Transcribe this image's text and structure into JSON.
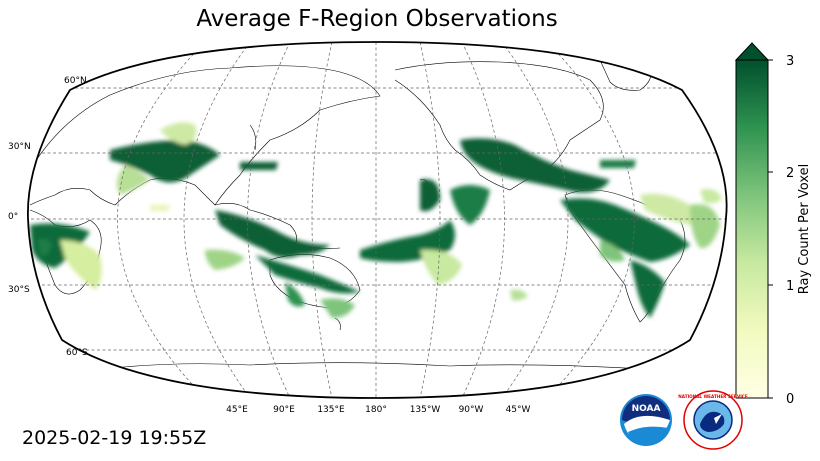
{
  "title": "Average F-Region Observations",
  "timestamp": "2025-02-19 19:55Z",
  "map": {
    "projection": "Robinson",
    "central_longitude_deg": 180,
    "lat_labels": [
      "60°N",
      "30°N",
      "0°",
      "30°S",
      "60°S"
    ],
    "lon_labels": [
      "45°E",
      "90°E",
      "135°E",
      "180°",
      "135°W",
      "90°W",
      "45°W"
    ],
    "gridlines": true
  },
  "colorbar": {
    "label": "Ray Count Per Voxel",
    "ticks": [
      "0",
      "1",
      "2",
      "3"
    ],
    "range": [
      0,
      3
    ],
    "extend": "max",
    "colormap": "Greens",
    "color_low": "#ffffe5",
    "color_high": "#004529"
  },
  "logos": {
    "noaa_text": "NOAA",
    "nws_text": "NATIONAL WEATHER SERVICE"
  }
}
